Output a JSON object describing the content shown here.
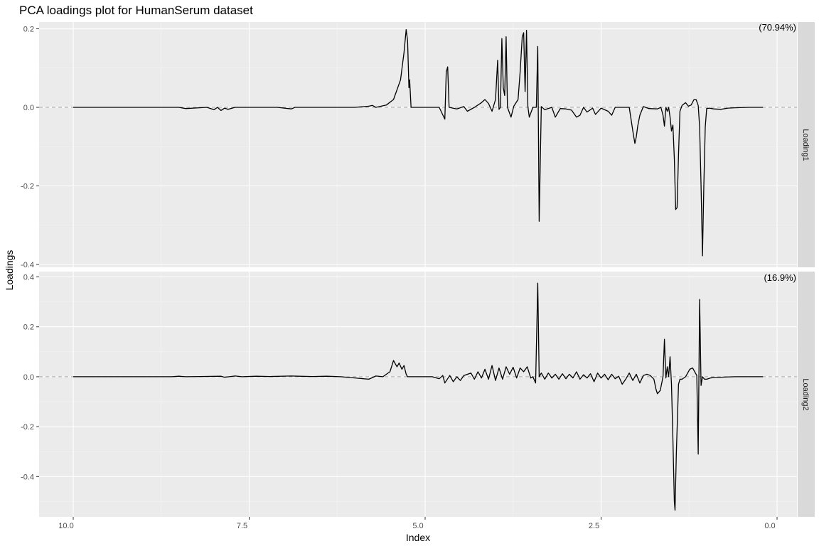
{
  "chart_data": {
    "type": "line",
    "title": "PCA loadings plot for HumanSerum dataset",
    "xlabel": "Index",
    "ylabel": "Loadings",
    "x_reversed": true,
    "xlim": [
      10.0,
      0.2
    ],
    "x_ticks": [
      10.0,
      7.5,
      5.0,
      2.5,
      0.0
    ],
    "x_tick_labels": [
      "10.0",
      "7.5",
      "5.0",
      "2.5",
      "0.0"
    ],
    "grid": true,
    "reference_line": 0.0,
    "panels": [
      {
        "strip_label": "Loading1",
        "variance_label": "(70.94%)",
        "ylim": [
          -0.4,
          0.21
        ],
        "y_ticks": [
          0.2,
          0.0,
          -0.2,
          -0.4
        ],
        "y_tick_labels": [
          "0.2",
          "0.0",
          "-0.2",
          "-0.4"
        ],
        "points": [
          [
            10.0,
            0.0
          ],
          [
            8.5,
            0.0
          ],
          [
            8.4,
            -0.003
          ],
          [
            8.1,
            0.0
          ],
          [
            8.0,
            -0.006
          ],
          [
            7.95,
            0.0
          ],
          [
            7.9,
            -0.008
          ],
          [
            7.85,
            -0.002
          ],
          [
            7.8,
            -0.005
          ],
          [
            7.7,
            0.0
          ],
          [
            7.1,
            0.0
          ],
          [
            6.9,
            -0.004
          ],
          [
            6.85,
            0.0
          ],
          [
            6.0,
            0.0
          ],
          [
            5.8,
            0.003
          ],
          [
            5.75,
            0.005
          ],
          [
            5.7,
            0.0
          ],
          [
            5.55,
            0.006
          ],
          [
            5.45,
            0.02
          ],
          [
            5.35,
            0.07
          ],
          [
            5.3,
            0.14
          ],
          [
            5.27,
            0.198
          ],
          [
            5.25,
            0.17
          ],
          [
            5.23,
            0.05
          ],
          [
            5.22,
            0.07
          ],
          [
            5.2,
            0.0
          ],
          [
            5.15,
            0.0
          ],
          [
            4.8,
            0.0
          ],
          [
            4.72,
            -0.03
          ],
          [
            4.7,
            0.09
          ],
          [
            4.68,
            0.103
          ],
          [
            4.66,
            0.0
          ],
          [
            4.55,
            -0.004
          ],
          [
            4.45,
            0.002
          ],
          [
            4.4,
            -0.01
          ],
          [
            4.3,
            0.0
          ],
          [
            4.2,
            0.012
          ],
          [
            4.15,
            0.02
          ],
          [
            4.1,
            0.01
          ],
          [
            4.05,
            -0.01
          ],
          [
            4.0,
            0.02
          ],
          [
            3.97,
            0.12
          ],
          [
            3.95,
            -0.005
          ],
          [
            3.93,
            0.0
          ],
          [
            3.91,
            0.175
          ],
          [
            3.89,
            0.05
          ],
          [
            3.87,
            0.03
          ],
          [
            3.85,
            0.18
          ],
          [
            3.83,
            0.0
          ],
          [
            3.78,
            -0.025
          ],
          [
            3.74,
            0.003
          ],
          [
            3.68,
            0.02
          ],
          [
            3.65,
            0.09
          ],
          [
            3.62,
            0.18
          ],
          [
            3.6,
            0.19
          ],
          [
            3.58,
            0.04
          ],
          [
            3.56,
            0.196
          ],
          [
            3.54,
            0.002
          ],
          [
            3.52,
            -0.025
          ],
          [
            3.47,
            0.0
          ],
          [
            3.42,
            0.0
          ],
          [
            3.4,
            0.155
          ],
          [
            3.38,
            -0.29
          ],
          [
            3.35,
            0.002
          ],
          [
            3.3,
            -0.006
          ],
          [
            3.2,
            0.0
          ],
          [
            3.15,
            -0.025
          ],
          [
            3.08,
            -0.003
          ],
          [
            3.0,
            -0.004
          ],
          [
            2.92,
            -0.007
          ],
          [
            2.85,
            -0.025
          ],
          [
            2.8,
            -0.02
          ],
          [
            2.75,
            0.0
          ],
          [
            2.7,
            -0.012
          ],
          [
            2.62,
            -0.002
          ],
          [
            2.58,
            -0.018
          ],
          [
            2.5,
            -0.002
          ],
          [
            2.4,
            -0.01
          ],
          [
            2.35,
            -0.02
          ],
          [
            2.3,
            0.0
          ],
          [
            2.1,
            0.0
          ],
          [
            2.05,
            -0.06
          ],
          [
            2.02,
            -0.092
          ],
          [
            2.0,
            -0.075
          ],
          [
            1.98,
            -0.048
          ],
          [
            1.95,
            -0.02
          ],
          [
            1.9,
            0.002
          ],
          [
            1.82,
            -0.003
          ],
          [
            1.7,
            -0.004
          ],
          [
            1.65,
            0.0
          ],
          [
            1.62,
            -0.02
          ],
          [
            1.6,
            -0.048
          ],
          [
            1.58,
            0.0
          ],
          [
            1.56,
            -0.01
          ],
          [
            1.54,
            0.0
          ],
          [
            1.52,
            -0.025
          ],
          [
            1.5,
            -0.06
          ],
          [
            1.48,
            -0.045
          ],
          [
            1.46,
            -0.13
          ],
          [
            1.44,
            -0.26
          ],
          [
            1.42,
            -0.255
          ],
          [
            1.4,
            -0.12
          ],
          [
            1.38,
            -0.01
          ],
          [
            1.35,
            0.005
          ],
          [
            1.3,
            0.012
          ],
          [
            1.26,
            0.003
          ],
          [
            1.22,
            0.006
          ],
          [
            1.18,
            0.02
          ],
          [
            1.15,
            0.02
          ],
          [
            1.12,
            0.005
          ],
          [
            1.1,
            -0.05
          ],
          [
            1.08,
            -0.2
          ],
          [
            1.06,
            -0.378
          ],
          [
            1.04,
            -0.2
          ],
          [
            1.02,
            -0.05
          ],
          [
            1.0,
            -0.003
          ],
          [
            0.96,
            -0.002
          ],
          [
            0.9,
            -0.004
          ],
          [
            0.8,
            -0.005
          ],
          [
            0.7,
            -0.002
          ],
          [
            0.6,
            -0.001
          ],
          [
            0.4,
            0.0
          ],
          [
            0.2,
            0.0
          ]
        ]
      },
      {
        "strip_label": "Loading2",
        "variance_label": "(16.9%)",
        "ylim": [
          -0.55,
          0.41
        ],
        "y_ticks": [
          0.4,
          0.2,
          0.0,
          -0.2,
          -0.4
        ],
        "y_tick_labels": [
          "0.4",
          "0.2",
          "0.0",
          "-0.2",
          "-0.4"
        ],
        "points": [
          [
            10.0,
            0.0
          ],
          [
            8.6,
            0.0
          ],
          [
            8.5,
            0.002
          ],
          [
            8.4,
            0.0
          ],
          [
            8.2,
            0.001
          ],
          [
            7.9,
            0.002
          ],
          [
            7.85,
            -0.002
          ],
          [
            7.7,
            0.003
          ],
          [
            7.6,
            0.0
          ],
          [
            7.4,
            0.002
          ],
          [
            7.2,
            0.001
          ],
          [
            6.9,
            0.003
          ],
          [
            6.8,
            0.002
          ],
          [
            6.6,
            0.001
          ],
          [
            6.4,
            0.002
          ],
          [
            6.2,
            0.0
          ],
          [
            5.8,
            -0.01
          ],
          [
            5.7,
            0.003
          ],
          [
            5.6,
            0.0
          ],
          [
            5.5,
            0.02
          ],
          [
            5.45,
            0.065
          ],
          [
            5.4,
            0.04
          ],
          [
            5.37,
            0.055
          ],
          [
            5.33,
            0.03
          ],
          [
            5.3,
            0.045
          ],
          [
            5.27,
            0.01
          ],
          [
            5.25,
            0.0
          ],
          [
            4.9,
            0.0
          ],
          [
            4.8,
            -0.008
          ],
          [
            4.75,
            0.005
          ],
          [
            4.72,
            -0.025
          ],
          [
            4.65,
            0.005
          ],
          [
            4.6,
            -0.02
          ],
          [
            4.55,
            0.0
          ],
          [
            4.5,
            -0.015
          ],
          [
            4.45,
            0.005
          ],
          [
            4.35,
            0.015
          ],
          [
            4.3,
            -0.01
          ],
          [
            4.25,
            0.02
          ],
          [
            4.2,
            -0.005
          ],
          [
            4.15,
            0.03
          ],
          [
            4.1,
            -0.01
          ],
          [
            4.05,
            0.045
          ],
          [
            4.0,
            -0.015
          ],
          [
            3.95,
            0.035
          ],
          [
            3.9,
            -0.01
          ],
          [
            3.85,
            0.04
          ],
          [
            3.8,
            0.01
          ],
          [
            3.75,
            0.038
          ],
          [
            3.7,
            -0.005
          ],
          [
            3.65,
            0.035
          ],
          [
            3.6,
            0.02
          ],
          [
            3.55,
            0.04
          ],
          [
            3.5,
            -0.005
          ],
          [
            3.47,
            0.0
          ],
          [
            3.43,
            -0.025
          ],
          [
            3.4,
            0.375
          ],
          [
            3.38,
            0.0
          ],
          [
            3.35,
            0.015
          ],
          [
            3.3,
            -0.01
          ],
          [
            3.25,
            0.015
          ],
          [
            3.2,
            -0.005
          ],
          [
            3.15,
            0.01
          ],
          [
            3.1,
            -0.01
          ],
          [
            3.05,
            0.012
          ],
          [
            3.0,
            -0.008
          ],
          [
            2.95,
            0.01
          ],
          [
            2.9,
            -0.005
          ],
          [
            2.85,
            0.02
          ],
          [
            2.8,
            -0.01
          ],
          [
            2.75,
            0.008
          ],
          [
            2.7,
            -0.005
          ],
          [
            2.65,
            0.012
          ],
          [
            2.6,
            -0.02
          ],
          [
            2.55,
            0.015
          ],
          [
            2.5,
            -0.005
          ],
          [
            2.45,
            0.01
          ],
          [
            2.4,
            -0.012
          ],
          [
            2.35,
            0.01
          ],
          [
            2.3,
            -0.008
          ],
          [
            2.25,
            0.002
          ],
          [
            2.2,
            -0.03
          ],
          [
            2.15,
            -0.01
          ],
          [
            2.1,
            0.015
          ],
          [
            2.05,
            -0.015
          ],
          [
            2.0,
            0.01
          ],
          [
            1.95,
            -0.025
          ],
          [
            1.9,
            0.005
          ],
          [
            1.85,
            0.01
          ],
          [
            1.8,
            0.005
          ],
          [
            1.75,
            -0.01
          ],
          [
            1.72,
            -0.05
          ],
          [
            1.7,
            -0.068
          ],
          [
            1.66,
            -0.055
          ],
          [
            1.62,
            0.0
          ],
          [
            1.6,
            0.15
          ],
          [
            1.58,
            -0.005
          ],
          [
            1.56,
            0.04
          ],
          [
            1.54,
            0.0
          ],
          [
            1.52,
            0.08
          ],
          [
            1.5,
            -0.03
          ],
          [
            1.48,
            -0.25
          ],
          [
            1.46,
            -0.5
          ],
          [
            1.45,
            -0.535
          ],
          [
            1.43,
            -0.3
          ],
          [
            1.4,
            -0.03
          ],
          [
            1.38,
            -0.01
          ],
          [
            1.35,
            -0.01
          ],
          [
            1.3,
            0.0
          ],
          [
            1.27,
            0.015
          ],
          [
            1.24,
            0.03
          ],
          [
            1.2,
            0.035
          ],
          [
            1.17,
            0.02
          ],
          [
            1.14,
            0.005
          ],
          [
            1.12,
            -0.31
          ],
          [
            1.1,
            0.31
          ],
          [
            1.08,
            -0.035
          ],
          [
            1.06,
            0.0
          ],
          [
            1.03,
            -0.01
          ],
          [
            1.0,
            -0.01
          ],
          [
            0.95,
            -0.005
          ],
          [
            0.9,
            -0.003
          ],
          [
            0.8,
            -0.002
          ],
          [
            0.6,
            0.0
          ],
          [
            0.2,
            0.0
          ]
        ]
      }
    ]
  }
}
